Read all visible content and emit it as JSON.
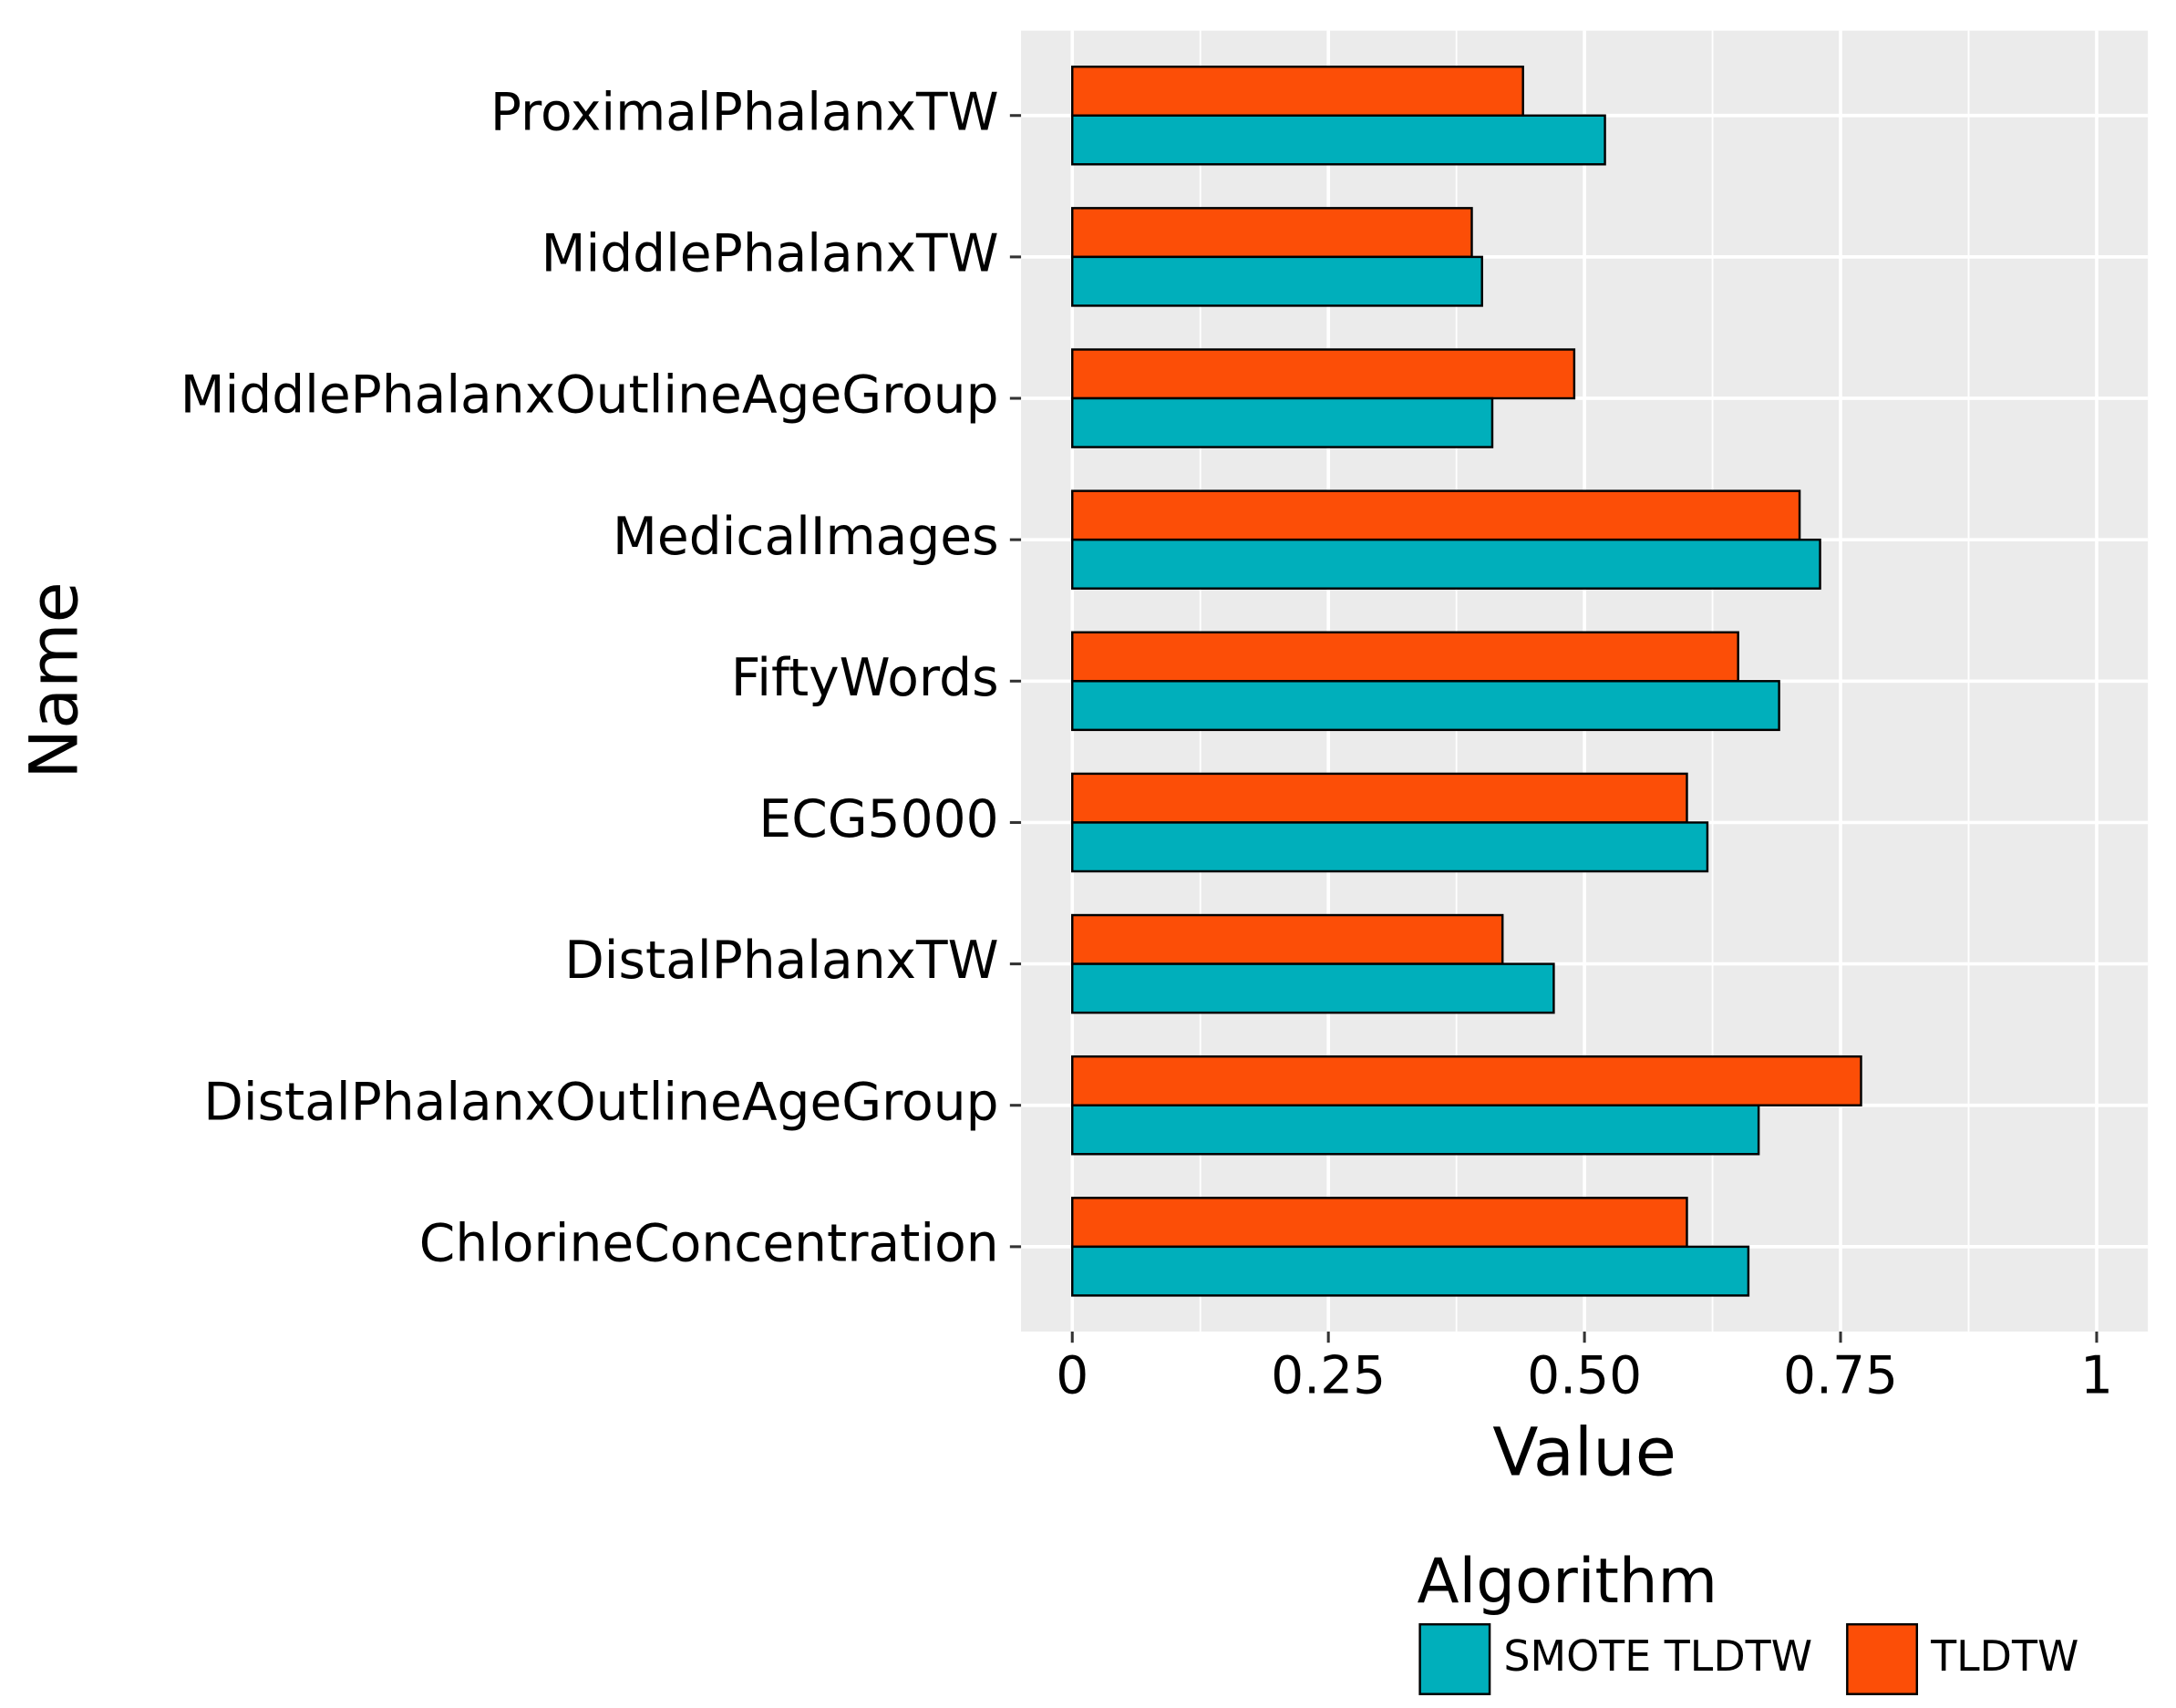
{
  "chart_data": {
    "type": "bar",
    "orientation": "horizontal",
    "x_label": "Value",
    "y_label": "Name",
    "legend_title": "Algorithm",
    "categories": [
      "ProximalPhalanxTW",
      "MiddlePhalanxTW",
      "MiddlePhalanxOutlineAgeGroup",
      "MedicalImages",
      "FiftyWords",
      "ECG5000",
      "DistalPhalanxTW",
      "DistalPhalanxOutlineAgeGroup",
      "ChlorineConcentration"
    ],
    "series": [
      {
        "name": "SMOTE TLDTW",
        "color": "#00AFBB",
        "values": [
          0.52,
          0.4,
          0.41,
          0.73,
          0.69,
          0.62,
          0.47,
          0.67,
          0.66
        ]
      },
      {
        "name": "TLDTW",
        "color": "#FC4E07",
        "values": [
          0.44,
          0.39,
          0.49,
          0.71,
          0.65,
          0.6,
          0.42,
          0.77,
          0.6
        ]
      }
    ],
    "xlim": [
      -0.05,
      1.05
    ],
    "xticks": [
      0,
      0.25,
      {
        "value": 0.5,
        "label": "0.50"
      },
      0.75,
      1
    ],
    "grid": true,
    "legend_position": "bottom"
  }
}
